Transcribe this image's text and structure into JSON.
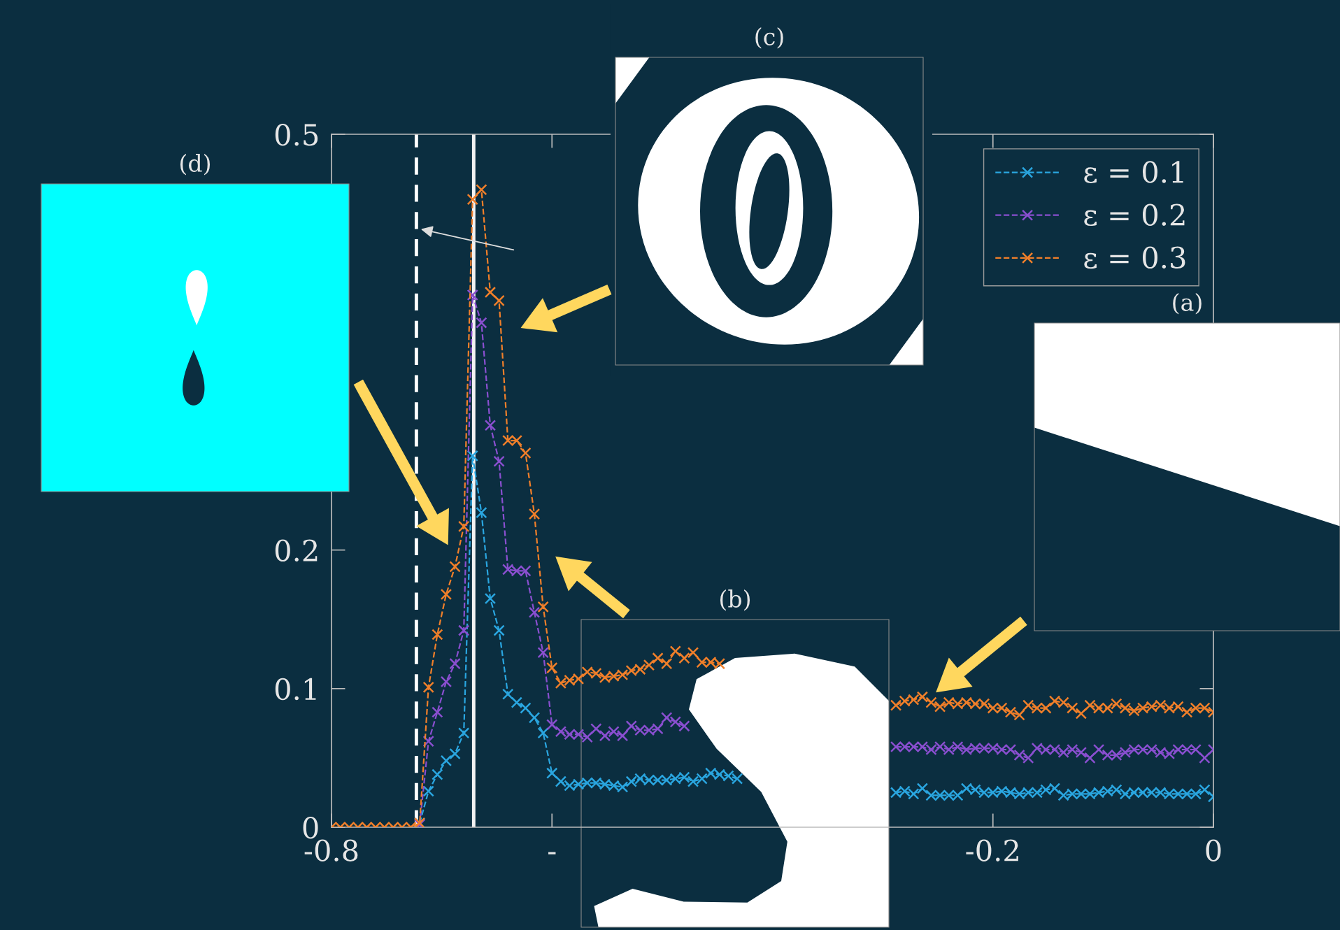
{
  "chart_data": {
    "type": "line",
    "x": [
      -0.8,
      -0.792,
      -0.784,
      -0.776,
      -0.768,
      -0.76,
      -0.752,
      -0.744,
      -0.736,
      -0.728,
      -0.72,
      -0.712,
      -0.704,
      -0.696,
      -0.688,
      -0.68,
      -0.672,
      -0.664,
      -0.656,
      -0.648,
      -0.64,
      -0.632,
      -0.624,
      -0.616,
      -0.608,
      -0.6,
      -0.592,
      -0.584,
      -0.576,
      -0.568,
      -0.56,
      -0.552,
      -0.544,
      -0.536,
      -0.528,
      -0.52,
      -0.512,
      -0.504,
      -0.496,
      -0.488,
      -0.48,
      -0.472,
      -0.464,
      -0.456,
      -0.448,
      -0.44,
      -0.432,
      -0.424,
      -0.416,
      -0.408,
      -0.4,
      -0.392,
      -0.384,
      -0.376,
      -0.368,
      -0.36,
      -0.352,
      -0.344,
      -0.336,
      -0.328,
      -0.32,
      -0.312,
      -0.304,
      -0.296,
      -0.288,
      -0.28,
      -0.272,
      -0.264,
      -0.256,
      -0.248,
      -0.24,
      -0.232,
      -0.224,
      -0.216,
      -0.208,
      -0.2,
      -0.192,
      -0.184,
      -0.176,
      -0.168,
      -0.16,
      -0.152,
      -0.144,
      -0.136,
      -0.128,
      -0.12,
      -0.112,
      -0.104,
      -0.096,
      -0.088,
      -0.08,
      -0.072,
      -0.064,
      -0.056,
      -0.048,
      -0.04,
      -0.032,
      -0.024,
      -0.016,
      -0.008,
      0
    ],
    "series": [
      {
        "name": "ε = 0.1",
        "color": "#2aa6e0",
        "values": [
          null,
          null,
          null,
          null,
          null,
          null,
          null,
          null,
          null,
          null,
          0.003,
          0.026,
          0.038,
          0.048,
          0.053,
          0.068,
          0.268,
          0.227,
          0.165,
          0.142,
          0.096,
          0.09,
          0.086,
          0.079,
          0.068,
          0.039,
          0.033,
          0.03,
          0.031,
          0.032,
          0.032,
          0.031,
          0.03,
          0.029,
          0.033,
          0.035,
          0.034,
          0.034,
          0.034,
          0.035,
          0.036,
          0.033,
          0.035,
          0.039,
          0.038,
          0.037,
          0.035,
          null,
          null,
          null,
          null,
          null,
          null,
          null,
          null,
          null,
          null,
          null,
          null,
          null,
          null,
          null,
          null,
          null,
          0.025,
          0.026,
          0.024,
          0.028,
          0.023,
          0.023,
          0.023,
          0.023,
          0.028,
          0.027,
          0.025,
          0.025,
          0.026,
          0.025,
          0.024,
          0.025,
          0.025,
          0.027,
          0.028,
          0.023,
          0.024,
          0.024,
          0.024,
          0.025,
          0.026,
          0.027,
          0.024,
          0.025,
          0.025,
          0.025,
          0.025,
          0.024,
          0.024,
          0.024,
          0.024,
          0.027,
          0.022
        ]
      },
      {
        "name": "ε = 0.2",
        "color": "#8a4fd0",
        "values": [
          null,
          null,
          null,
          null,
          null,
          null,
          null,
          null,
          null,
          null,
          0.002,
          0.062,
          0.083,
          0.105,
          0.118,
          0.142,
          0.384,
          0.364,
          0.29,
          0.264,
          0.186,
          0.185,
          0.185,
          0.155,
          0.126,
          0.074,
          0.069,
          0.067,
          0.067,
          0.065,
          0.071,
          0.066,
          0.069,
          0.066,
          0.073,
          0.07,
          0.07,
          0.071,
          0.079,
          0.076,
          0.073,
          null,
          null,
          null,
          null,
          null,
          null,
          null,
          null,
          null,
          null,
          null,
          null,
          null,
          null,
          null,
          null,
          null,
          null,
          null,
          null,
          null,
          null,
          null,
          0.058,
          0.058,
          0.058,
          0.058,
          0.056,
          0.058,
          0.056,
          0.058,
          0.056,
          0.057,
          0.057,
          0.057,
          0.056,
          0.056,
          0.052,
          0.05,
          0.057,
          0.056,
          0.056,
          0.054,
          0.056,
          0.054,
          0.05,
          0.056,
          0.052,
          0.052,
          0.054,
          0.056,
          0.056,
          0.056,
          0.054,
          0.053,
          0.056,
          0.056,
          0.056,
          0.05,
          0.056
        ]
      },
      {
        "name": "ε = 0.3",
        "color": "#f07f2a",
        "values": [
          0,
          0,
          0,
          0,
          0,
          0,
          0,
          0,
          0,
          0,
          0.003,
          0.101,
          0.139,
          0.168,
          0.188,
          0.217,
          0.453,
          0.46,
          0.386,
          0.38,
          0.279,
          0.279,
          0.27,
          0.226,
          0.159,
          0.115,
          0.104,
          0.106,
          0.107,
          0.112,
          0.111,
          0.108,
          0.109,
          0.11,
          0.113,
          0.114,
          0.117,
          0.122,
          0.118,
          0.127,
          0.122,
          0.126,
          0.119,
          0.119,
          0.118,
          null,
          null,
          null,
          null,
          null,
          null,
          null,
          null,
          null,
          null,
          null,
          null,
          null,
          null,
          null,
          null,
          null,
          null,
          null,
          0.088,
          0.091,
          0.092,
          0.094,
          0.09,
          0.087,
          0.09,
          0.089,
          0.09,
          0.089,
          0.089,
          0.086,
          0.086,
          0.083,
          0.081,
          0.088,
          0.086,
          0.086,
          0.091,
          0.09,
          0.086,
          0.082,
          0.088,
          0.086,
          0.086,
          0.089,
          0.086,
          0.084,
          0.086,
          0.087,
          0.088,
          0.086,
          0.087,
          0.083,
          0.086,
          0.086,
          0.083
        ]
      }
    ],
    "xlim": [
      -0.8,
      0
    ],
    "ylim": [
      0,
      0.5
    ],
    "xticks": [
      -0.8,
      {
        "value": -0.6,
        "label": "-"
      },
      -0.2,
      0
    ],
    "yticks": [
      0,
      0.1,
      0.2,
      0.5
    ],
    "marker": "cross",
    "line_style": "dashed",
    "legend": "top right",
    "ref_lines": [
      {
        "axis": "x",
        "value": -0.723,
        "color": "#ffffff",
        "line_style": "dashed"
      },
      {
        "axis": "x",
        "value": -0.671,
        "color": "#f2f2f2",
        "line_style": "solid"
      }
    ],
    "annotations": [
      "(d)",
      "(c)",
      "(a)",
      "(b)"
    ]
  }
}
